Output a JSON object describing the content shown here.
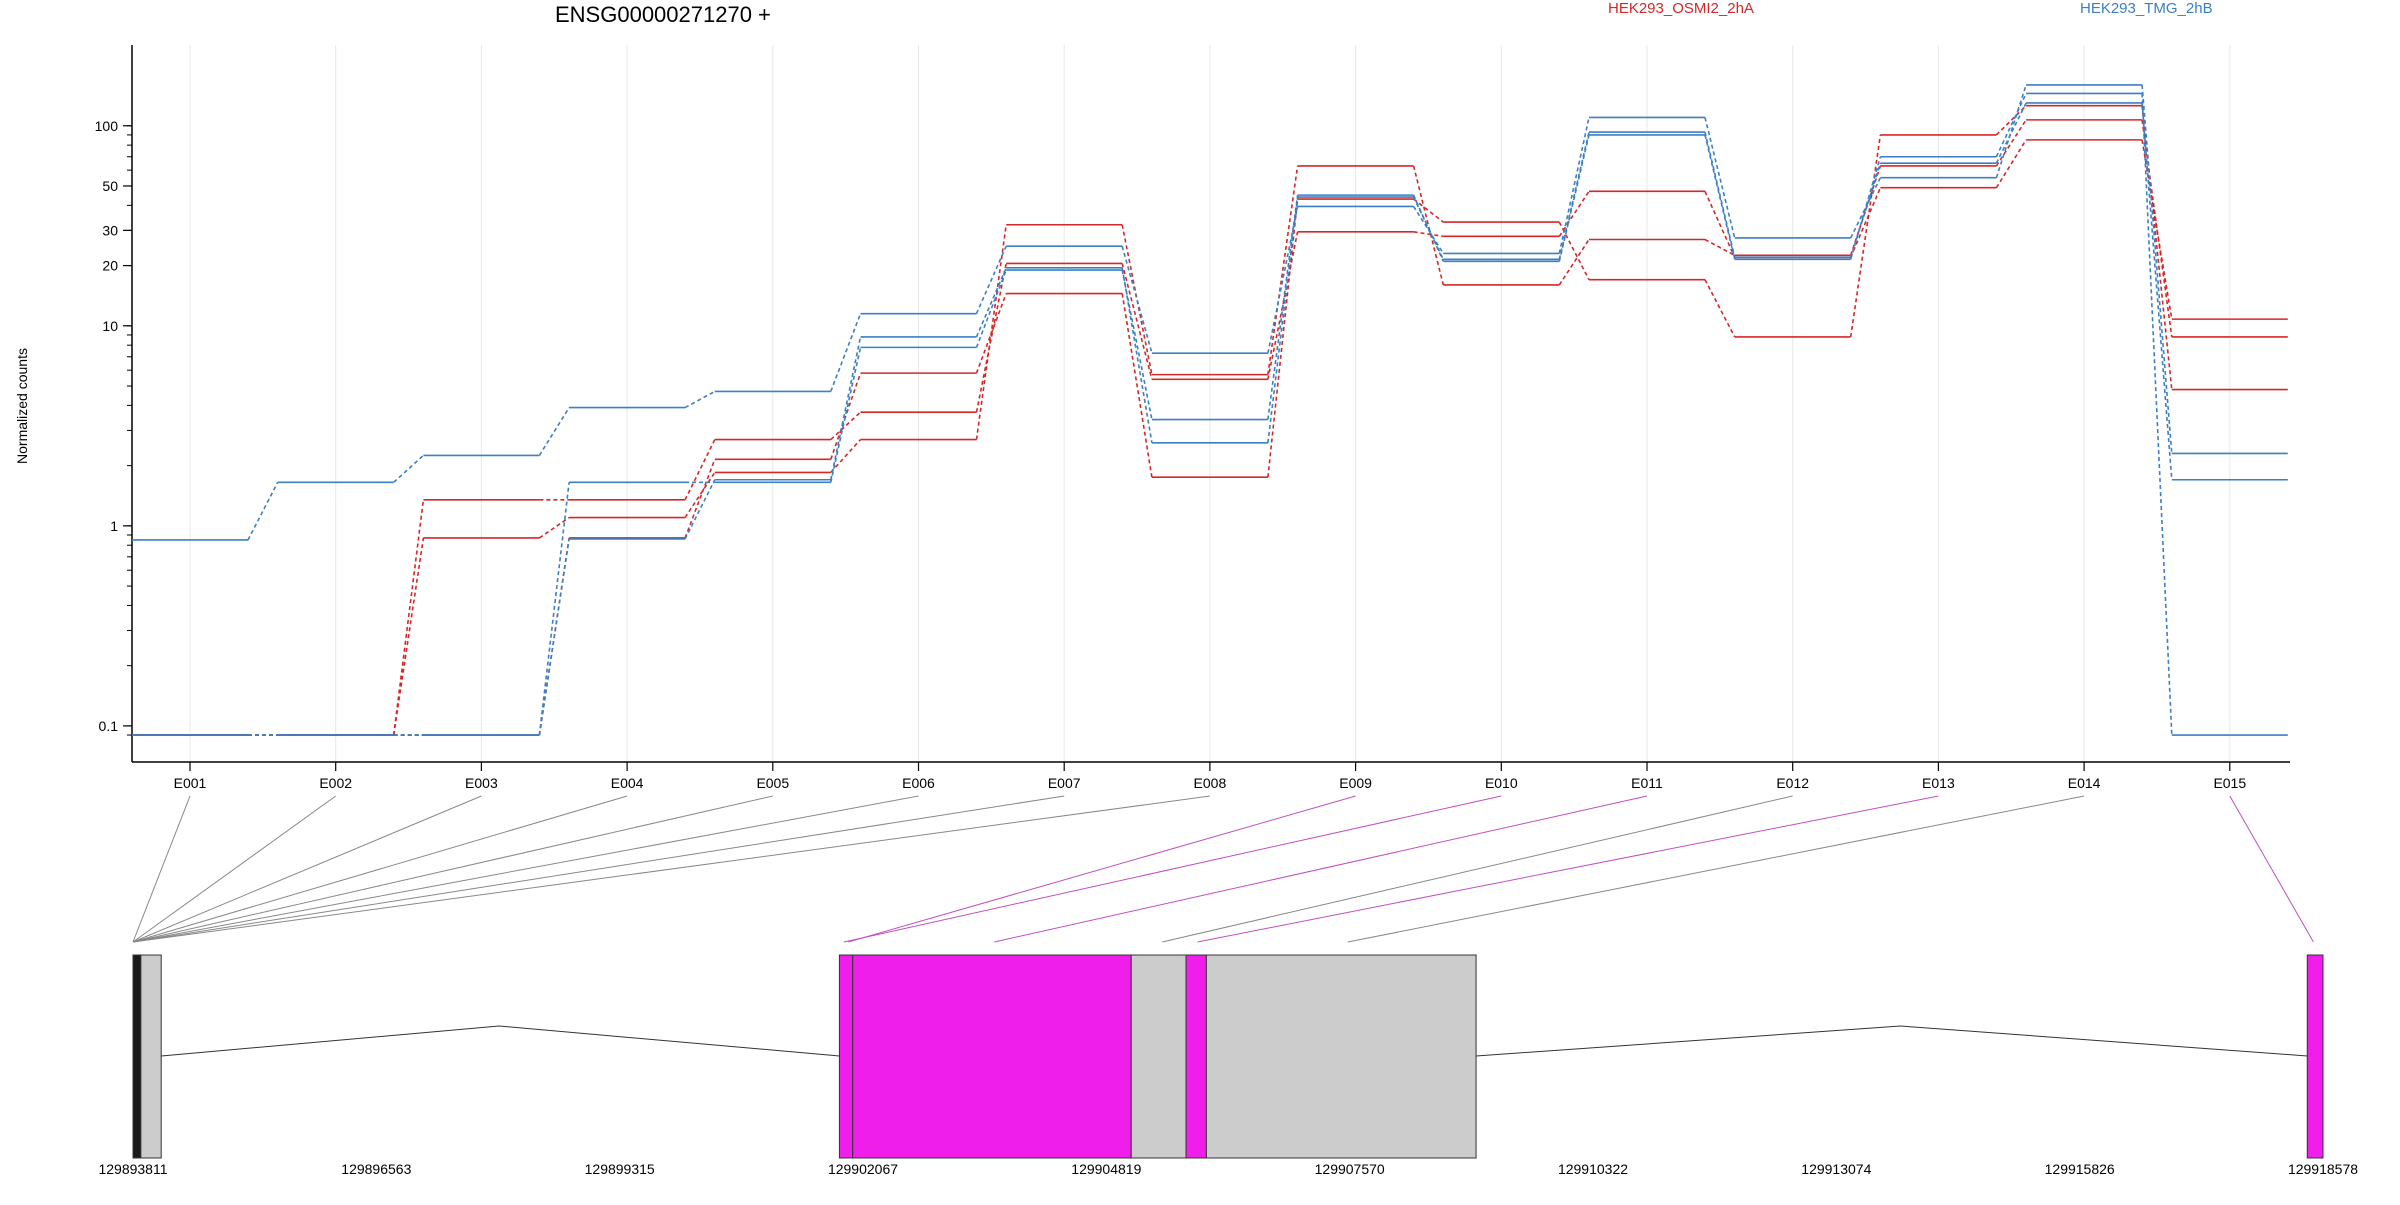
{
  "chart_data": {
    "type": "line",
    "title": "ENSG00000271270 +",
    "ylabel": "Normalized counts",
    "yscale": "log",
    "yticks": [
      "0.1",
      "1",
      "10",
      "20",
      "30",
      "50",
      "100"
    ],
    "ytick_values": [
      0.1,
      1,
      10,
      20,
      30,
      50,
      100
    ],
    "ylim": [
      0.085,
      190
    ],
    "categories": [
      "E001",
      "E002",
      "E003",
      "E004",
      "E005",
      "E006",
      "E007",
      "E008",
      "E009",
      "E010",
      "E011",
      "E012",
      "E013",
      "E014",
      "E015"
    ],
    "legend": [
      "HEK293_OSMI2_2hA",
      "HEK293_TMG_2hB"
    ],
    "legend_placement": "top-right",
    "grid": "vertical",
    "series": [
      {
        "name": "HEK293_OSMI2_2hA",
        "color": "#d62728",
        "values": [
          0.09,
          0.09,
          1.35,
          1.35,
          2.7,
          3.7,
          20.5,
          5.4,
          29.5,
          28,
          47,
          22,
          49,
          85,
          10.8
        ]
      },
      {
        "name": "HEK293_OSMI2_2hA",
        "color": "#d62728",
        "values": [
          0.09,
          0.09,
          0.87,
          1.1,
          1.85,
          2.7,
          32,
          5.7,
          63,
          16,
          27,
          22.5,
          63,
          107,
          8.8
        ]
      },
      {
        "name": "HEK293_OSMI2_2hA",
        "color": "#d62728",
        "values": [
          0.09,
          0.09,
          0.09,
          0.87,
          2.15,
          5.8,
          14.5,
          1.75,
          43,
          33,
          17,
          8.8,
          90,
          126,
          4.8
        ]
      },
      {
        "name": "HEK293_TMG_2hB",
        "color": "#3b7fc4",
        "values": [
          0.85,
          1.65,
          2.25,
          3.9,
          4.7,
          11.5,
          25,
          7.3,
          39.5,
          23,
          110,
          27.5,
          55,
          160,
          2.3
        ]
      },
      {
        "name": "HEK293_TMG_2hB",
        "color": "#3b7fc4",
        "values": [
          0.09,
          0.09,
          0.09,
          1.65,
          1.65,
          7.8,
          19,
          3.4,
          45,
          21,
          90,
          21.5,
          70,
          145,
          0.09
        ]
      },
      {
        "name": "HEK293_TMG_2hB",
        "color": "#3b7fc4",
        "values": [
          0.09,
          0.09,
          0.09,
          0.86,
          1.7,
          8.8,
          19.5,
          2.6,
          44,
          21.5,
          93,
          22,
          65,
          130,
          1.7
        ]
      }
    ],
    "gene_model": {
      "coordinates": [
        "129893811",
        "129896563",
        "129899315",
        "129902067",
        "129904819",
        "129907570",
        "129910322",
        "129913074",
        "129915826",
        "129918578"
      ],
      "coord_range": [
        129893811,
        129918578
      ],
      "exons": [
        {
          "start": 129893811,
          "end": 129893900,
          "color": "#1a1a1a"
        },
        {
          "start": 129893900,
          "end": 129894130,
          "color": "#cccccc"
        },
        {
          "start": 129901800,
          "end": 129901950,
          "color": "#f01eeb"
        },
        {
          "start": 129901950,
          "end": 129905100,
          "color": "#f01eeb"
        },
        {
          "start": 129905100,
          "end": 129905720,
          "color": "#cccccc"
        },
        {
          "start": 129905720,
          "end": 129905950,
          "color": "#f01eeb"
        },
        {
          "start": 129905950,
          "end": 129909000,
          "color": "#cccccc"
        },
        {
          "start": 129918400,
          "end": 129918578,
          "color": "#f01eeb"
        }
      ],
      "connectors": [
        {
          "exon": "E001",
          "coord": 129893811,
          "color": "#888888"
        },
        {
          "exon": "E002",
          "coord": 129893811,
          "color": "#888888"
        },
        {
          "exon": "E003",
          "coord": 129893811,
          "color": "#888888"
        },
        {
          "exon": "E004",
          "coord": 129893811,
          "color": "#888888"
        },
        {
          "exon": "E005",
          "coord": 129893811,
          "color": "#888888"
        },
        {
          "exon": "E006",
          "coord": 129893811,
          "color": "#888888"
        },
        {
          "exon": "E007",
          "coord": 129893811,
          "color": "#888888"
        },
        {
          "exon": "E008",
          "coord": 129893811,
          "color": "#888888"
        },
        {
          "exon": "E009",
          "coord": 129901900,
          "color": "#c050c0"
        },
        {
          "exon": "E010",
          "coord": 129901850,
          "color": "#c050c0"
        },
        {
          "exon": "E011",
          "coord": 129903550,
          "color": "#c050c0"
        },
        {
          "exon": "E012",
          "coord": 129905450,
          "color": "#888888"
        },
        {
          "exon": "E013",
          "coord": 129905850,
          "color": "#c050c0"
        },
        {
          "exon": "E014",
          "coord": 129907550,
          "color": "#888888"
        },
        {
          "exon": "E015",
          "coord": 129918470,
          "color": "#c050c0"
        }
      ],
      "introns": [
        {
          "from": 129894130,
          "peak": 129897950,
          "to": 129901800
        },
        {
          "from": 129909000,
          "peak": 129913800,
          "to": 129918400
        }
      ]
    }
  }
}
